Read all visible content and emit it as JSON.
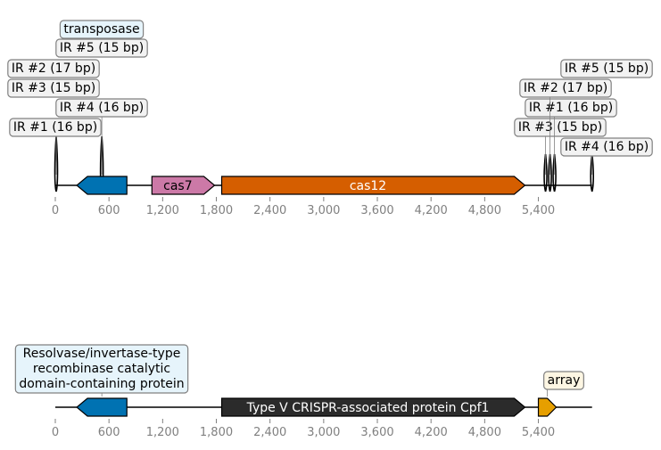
{
  "tracks": [
    {
      "ticks": [
        "0",
        "600",
        "1,200",
        "1,800",
        "2,400",
        "3,000",
        "3,600",
        "4,200",
        "4,800",
        "5,400"
      ],
      "features": [
        {
          "name": "transposase",
          "start": 240,
          "end": 800,
          "strand": -1,
          "color": "#0072b2",
          "label": "",
          "label_color": "#000000"
        },
        {
          "name": "cas7",
          "start": 1080,
          "end": 1780,
          "strand": 1,
          "color": "#cc79a7",
          "label": "cas7",
          "label_color": "#000000"
        },
        {
          "name": "cas12",
          "start": 1860,
          "end": 5250,
          "strand": 1,
          "color": "#d55e00",
          "label": "cas12",
          "label_color": "#ffffff"
        }
      ],
      "markers": [
        {
          "pos": 10,
          "height": 55
        },
        {
          "pos": 520,
          "height": 55
        },
        {
          "pos": 5480,
          "height": 35
        },
        {
          "pos": 5530,
          "height": 35
        },
        {
          "pos": 5580,
          "height": 35
        },
        {
          "pos": 6000,
          "height": 35
        }
      ],
      "callouts": [
        {
          "text": "IR #1 (16 bp)",
          "box_color": "#f2f2f2"
        },
        {
          "text": "IR #4 (16 bp)",
          "box_color": "#f2f2f2"
        },
        {
          "text": "IR #3 (15 bp)",
          "box_color": "#f2f2f2"
        },
        {
          "text": "IR #2 (17 bp)",
          "box_color": "#f2f2f2"
        },
        {
          "text": "IR #5 (15 bp)",
          "box_color": "#f2f2f2"
        },
        {
          "text": "transposase",
          "box_color": "#e6f4fb"
        },
        {
          "text": "IR #4 (16 bp)",
          "box_color": "#f2f2f2"
        },
        {
          "text": "IR #3 (15 bp)",
          "box_color": "#f2f2f2"
        },
        {
          "text": "IR #1 (16 bp)",
          "box_color": "#f2f2f2"
        },
        {
          "text": "IR #2 (17 bp)",
          "box_color": "#f2f2f2"
        },
        {
          "text": "IR #5 (15 bp)",
          "box_color": "#f2f2f2"
        }
      ]
    },
    {
      "ticks": [
        "0",
        "600",
        "1,200",
        "1,800",
        "2,400",
        "3,000",
        "3,600",
        "4,200",
        "4,800",
        "5,400"
      ],
      "features": [
        {
          "name": "resolvase",
          "start": 240,
          "end": 800,
          "strand": -1,
          "color": "#0072b2",
          "label": "",
          "label_color": "#000000"
        },
        {
          "name": "cpf1",
          "start": 1860,
          "end": 5250,
          "strand": 1,
          "color": "#2b2b2b",
          "label": "Type V CRISPR-associated protein Cpf1",
          "label_color": "#ffffff"
        },
        {
          "name": "array",
          "start": 5400,
          "end": 5600,
          "strand": 1,
          "color": "#e69f00",
          "label": "",
          "label_color": "#000000"
        }
      ],
      "markers": [],
      "callouts": [
        {
          "text": "Resolvase/invertase-type recombinase catalytic domain-containing protein",
          "lines": [
            "Resolvase/invertase-type",
            "recombinase catalytic",
            "domain-containing protein"
          ],
          "box_color": "#e6f4fb"
        },
        {
          "text": "array",
          "lines": [
            "array"
          ],
          "box_color": "#fdf6e3"
        }
      ]
    }
  ]
}
